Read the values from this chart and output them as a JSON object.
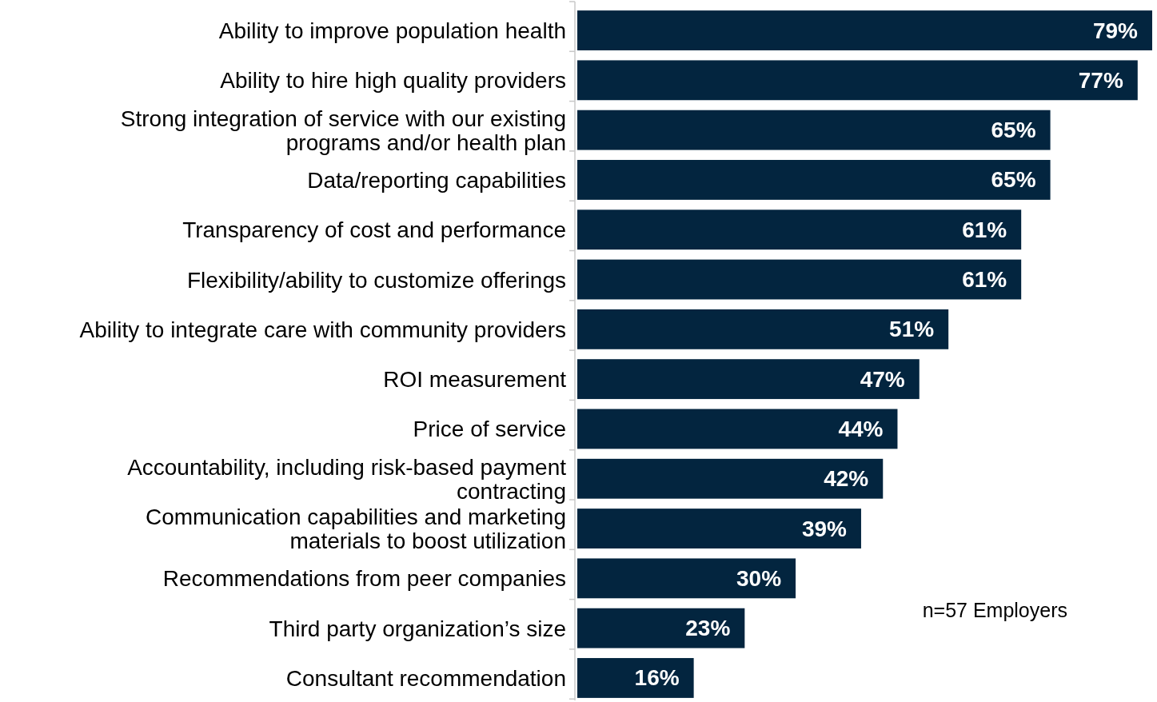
{
  "chart_data": {
    "type": "bar",
    "orientation": "horizontal",
    "categories": [
      "Ability to improve population health",
      "Ability to hire high quality providers",
      "Strong integration of service with our existing programs and/or health plan",
      "Data/reporting capabilities",
      "Transparency of cost and performance",
      "Flexibility/ability to customize offerings",
      "Ability to integrate care with community providers",
      "ROI measurement",
      "Price of service",
      "Accountability, including risk-based payment contracting",
      "Communication capabilities and marketing materials to boost utilization",
      "Recommendations from peer companies",
      "Third party organization’s size",
      "Consultant recommendation"
    ],
    "values": [
      79,
      77,
      65,
      65,
      61,
      61,
      51,
      47,
      44,
      42,
      39,
      30,
      23,
      16
    ],
    "value_labels": [
      "79%",
      "77%",
      "65%",
      "65%",
      "61%",
      "61%",
      "51%",
      "47%",
      "44%",
      "42%",
      "39%",
      "30%",
      "23%",
      "16%"
    ],
    "color": "#03253f",
    "annotations": [
      {
        "text": "n=57 Employers"
      }
    ]
  }
}
